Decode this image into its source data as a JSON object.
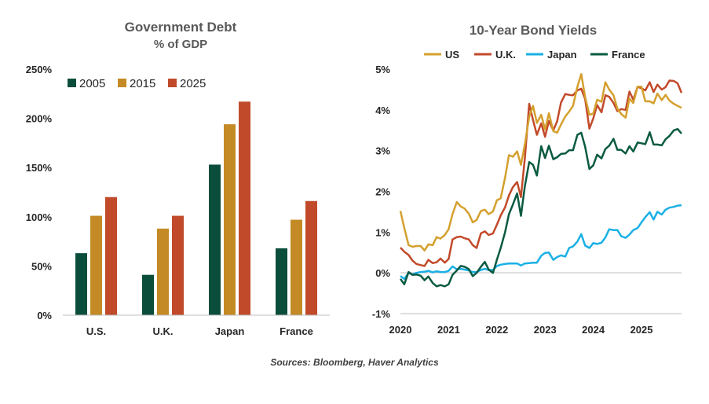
{
  "source_note": "Sources: Bloomberg, Haver Analytics",
  "colors": {
    "2005": "#0b4d3b",
    "2015": "#c48a25",
    "2025": "#c04a2a",
    "us": "#d4a02e",
    "uk": "#c24a2a",
    "japan": "#1ab0e6",
    "france": "#0b5a42",
    "axis": "#bfbfbf"
  },
  "chart_data": [
    {
      "type": "bar",
      "title": "Government Debt",
      "subtitle": "% of GDP",
      "categories": [
        "U.S.",
        "U.K.",
        "Japan",
        "France"
      ],
      "ylim": [
        0,
        250
      ],
      "yticks": [
        0,
        50,
        100,
        150,
        200,
        250
      ],
      "ytick_labels": [
        "0%",
        "50%",
        "100%",
        "150%",
        "200%",
        "250%"
      ],
      "legend_position": "top-left",
      "grid": false,
      "series": [
        {
          "name": "2005",
          "values": [
            63,
            41,
            153,
            68
          ]
        },
        {
          "name": "2015",
          "values": [
            101,
            88,
            194,
            97
          ]
        },
        {
          "name": "2025",
          "values": [
            120,
            101,
            217,
            116
          ]
        }
      ]
    },
    {
      "type": "line",
      "title": "10-Year Bond Yields",
      "ylim": [
        -1,
        5
      ],
      "yticks": [
        -1,
        0,
        1,
        2,
        3,
        4,
        5
      ],
      "ytick_labels": [
        "-1%",
        "0%",
        "1%",
        "2%",
        "3%",
        "4%",
        "5%"
      ],
      "xlim": [
        2020,
        2025.83
      ],
      "xticks": [
        2020,
        2021,
        2022,
        2023,
        2024,
        2025
      ],
      "xtick_labels": [
        "2020",
        "2021",
        "2022",
        "2023",
        "2024",
        "2025"
      ],
      "legend_position": "top",
      "grid": false,
      "series": [
        {
          "name": "US",
          "x": [
            2020.0,
            2020.08,
            2020.17,
            2020.25,
            2020.33,
            2020.42,
            2020.5,
            2020.58,
            2020.67,
            2020.75,
            2020.83,
            2020.92,
            2021.0,
            2021.08,
            2021.17,
            2021.25,
            2021.33,
            2021.42,
            2021.5,
            2021.58,
            2021.67,
            2021.75,
            2021.83,
            2021.92,
            2022.0,
            2022.08,
            2022.17,
            2022.25,
            2022.33,
            2022.42,
            2022.5,
            2022.58,
            2022.67,
            2022.75,
            2022.83,
            2022.92,
            2023.0,
            2023.08,
            2023.17,
            2023.25,
            2023.33,
            2023.42,
            2023.5,
            2023.58,
            2023.67,
            2023.75,
            2023.83,
            2023.92,
            2024.0,
            2024.08,
            2024.17,
            2024.25,
            2024.33,
            2024.42,
            2024.5,
            2024.58,
            2024.67,
            2024.75,
            2024.83,
            2024.92,
            2025.0,
            2025.08,
            2025.17,
            2025.25,
            2025.33,
            2025.42,
            2025.5,
            2025.58,
            2025.67,
            2025.75,
            2025.83
          ],
          "values": [
            1.52,
            1.1,
            0.68,
            0.64,
            0.66,
            0.66,
            0.55,
            0.7,
            0.68,
            0.88,
            0.84,
            0.93,
            1.07,
            1.44,
            1.74,
            1.63,
            1.58,
            1.45,
            1.24,
            1.3,
            1.52,
            1.55,
            1.44,
            1.51,
            1.78,
            1.83,
            2.34,
            2.89,
            2.85,
            2.98,
            2.65,
            3.15,
            3.83,
            4.1,
            3.68,
            3.88,
            3.52,
            3.92,
            3.48,
            3.44,
            3.64,
            3.84,
            3.96,
            4.1,
            4.57,
            4.88,
            4.32,
            3.88,
            3.91,
            4.25,
            4.2,
            4.68,
            4.5,
            4.36,
            4.03,
            3.9,
            3.81,
            4.28,
            4.17,
            4.57,
            4.57,
            4.21,
            4.21,
            4.16,
            4.4,
            4.24,
            4.37,
            4.23,
            4.15,
            4.1,
            4.05
          ]
        },
        {
          "name": "U.K.",
          "x": [
            2020.0,
            2020.08,
            2020.17,
            2020.25,
            2020.33,
            2020.42,
            2020.5,
            2020.58,
            2020.67,
            2020.75,
            2020.83,
            2020.92,
            2021.0,
            2021.08,
            2021.17,
            2021.25,
            2021.33,
            2021.42,
            2021.5,
            2021.58,
            2021.67,
            2021.75,
            2021.83,
            2021.92,
            2022.0,
            2022.08,
            2022.17,
            2022.25,
            2022.33,
            2022.42,
            2022.5,
            2022.58,
            2022.67,
            2022.75,
            2022.83,
            2022.92,
            2023.0,
            2023.08,
            2023.17,
            2023.25,
            2023.33,
            2023.42,
            2023.5,
            2023.58,
            2023.67,
            2023.75,
            2023.83,
            2023.92,
            2024.0,
            2024.08,
            2024.17,
            2024.25,
            2024.33,
            2024.42,
            2024.5,
            2024.58,
            2024.67,
            2024.75,
            2024.83,
            2024.92,
            2025.0,
            2025.08,
            2025.17,
            2025.25,
            2025.33,
            2025.42,
            2025.5,
            2025.58,
            2025.67,
            2025.75,
            2025.83
          ],
          "values": [
            0.62,
            0.52,
            0.44,
            0.3,
            0.22,
            0.19,
            0.17,
            0.32,
            0.24,
            0.26,
            0.35,
            0.25,
            0.34,
            0.82,
            0.88,
            0.89,
            0.85,
            0.82,
            0.68,
            0.61,
            0.97,
            1.02,
            0.93,
            0.97,
            1.18,
            1.41,
            1.61,
            1.9,
            2.1,
            2.23,
            1.86,
            2.8,
            4.15,
            3.75,
            3.39,
            3.67,
            3.34,
            3.73,
            3.5,
            3.72,
            4.18,
            4.39,
            4.37,
            4.36,
            4.48,
            4.52,
            4.27,
            3.54,
            3.79,
            4.12,
            3.94,
            4.36,
            4.32,
            4.17,
            3.97,
            4.02,
            4.0,
            4.45,
            4.25,
            4.57,
            4.53,
            4.48,
            4.68,
            4.44,
            4.62,
            4.5,
            4.56,
            4.72,
            4.71,
            4.65,
            4.42
          ]
        },
        {
          "name": "Japan",
          "x": [
            2020.0,
            2020.08,
            2020.17,
            2020.25,
            2020.33,
            2020.42,
            2020.5,
            2020.58,
            2020.67,
            2020.75,
            2020.83,
            2020.92,
            2021.0,
            2021.08,
            2021.17,
            2021.25,
            2021.33,
            2021.42,
            2021.5,
            2021.58,
            2021.67,
            2021.75,
            2021.83,
            2021.92,
            2022.0,
            2022.08,
            2022.17,
            2022.25,
            2022.33,
            2022.42,
            2022.5,
            2022.58,
            2022.67,
            2022.75,
            2022.83,
            2022.92,
            2023.0,
            2023.08,
            2023.17,
            2023.25,
            2023.33,
            2023.42,
            2023.5,
            2023.58,
            2023.67,
            2023.75,
            2023.83,
            2023.92,
            2024.0,
            2024.08,
            2024.17,
            2024.25,
            2024.33,
            2024.42,
            2024.5,
            2024.58,
            2024.67,
            2024.75,
            2024.83,
            2024.92,
            2025.0,
            2025.08,
            2025.17,
            2025.25,
            2025.33,
            2025.42,
            2025.5,
            2025.58,
            2025.67,
            2025.75,
            2025.83
          ],
          "values": [
            -0.08,
            -0.15,
            0.0,
            -0.04,
            0.0,
            0.02,
            0.03,
            0.05,
            0.01,
            0.04,
            0.02,
            0.02,
            0.05,
            0.16,
            0.09,
            0.1,
            0.08,
            0.06,
            0.02,
            0.02,
            0.07,
            0.1,
            0.07,
            0.07,
            0.17,
            0.2,
            0.22,
            0.23,
            0.23,
            0.23,
            0.18,
            0.23,
            0.24,
            0.25,
            0.25,
            0.42,
            0.49,
            0.5,
            0.32,
            0.39,
            0.43,
            0.4,
            0.61,
            0.65,
            0.77,
            0.95,
            0.67,
            0.61,
            0.73,
            0.71,
            0.74,
            0.87,
            1.07,
            1.05,
            1.05,
            0.9,
            0.86,
            0.94,
            1.05,
            1.1,
            1.24,
            1.37,
            1.49,
            1.31,
            1.5,
            1.43,
            1.55,
            1.6,
            1.62,
            1.65,
            1.66
          ]
        },
        {
          "name": "France",
          "x": [
            2020.0,
            2020.08,
            2020.17,
            2020.25,
            2020.33,
            2020.42,
            2020.5,
            2020.58,
            2020.67,
            2020.75,
            2020.83,
            2020.92,
            2021.0,
            2021.08,
            2021.17,
            2021.25,
            2021.33,
            2021.42,
            2021.5,
            2021.58,
            2021.67,
            2021.75,
            2021.83,
            2021.92,
            2022.0,
            2022.08,
            2022.17,
            2022.25,
            2022.33,
            2022.42,
            2022.5,
            2022.58,
            2022.67,
            2022.75,
            2022.83,
            2022.92,
            2023.0,
            2023.08,
            2023.17,
            2023.25,
            2023.33,
            2023.42,
            2023.5,
            2023.58,
            2023.67,
            2023.75,
            2023.83,
            2023.92,
            2024.0,
            2024.08,
            2024.17,
            2024.25,
            2024.33,
            2024.42,
            2024.5,
            2024.58,
            2024.67,
            2024.75,
            2024.83,
            2024.92,
            2025.0,
            2025.08,
            2025.17,
            2025.25,
            2025.33,
            2025.42,
            2025.5,
            2025.58,
            2025.67,
            2025.75,
            2025.83
          ],
          "values": [
            -0.15,
            -0.28,
            0.02,
            -0.05,
            -0.04,
            -0.07,
            -0.18,
            -0.09,
            -0.25,
            -0.33,
            -0.3,
            -0.33,
            -0.28,
            -0.05,
            0.06,
            0.17,
            0.15,
            0.09,
            -0.08,
            0.0,
            0.15,
            0.27,
            0.08,
            0.0,
            0.32,
            0.61,
            1.0,
            1.44,
            1.67,
            1.95,
            1.4,
            2.12,
            2.72,
            2.65,
            2.39,
            3.11,
            2.82,
            3.12,
            2.79,
            2.84,
            2.92,
            2.93,
            3.01,
            3.01,
            3.39,
            3.44,
            3.1,
            2.55,
            2.64,
            2.9,
            2.81,
            3.04,
            3.12,
            3.29,
            3.02,
            3.02,
            2.93,
            3.11,
            2.98,
            3.2,
            3.18,
            3.16,
            3.45,
            3.15,
            3.15,
            3.13,
            3.28,
            3.36,
            3.5,
            3.53,
            3.42
          ]
        }
      ]
    }
  ]
}
